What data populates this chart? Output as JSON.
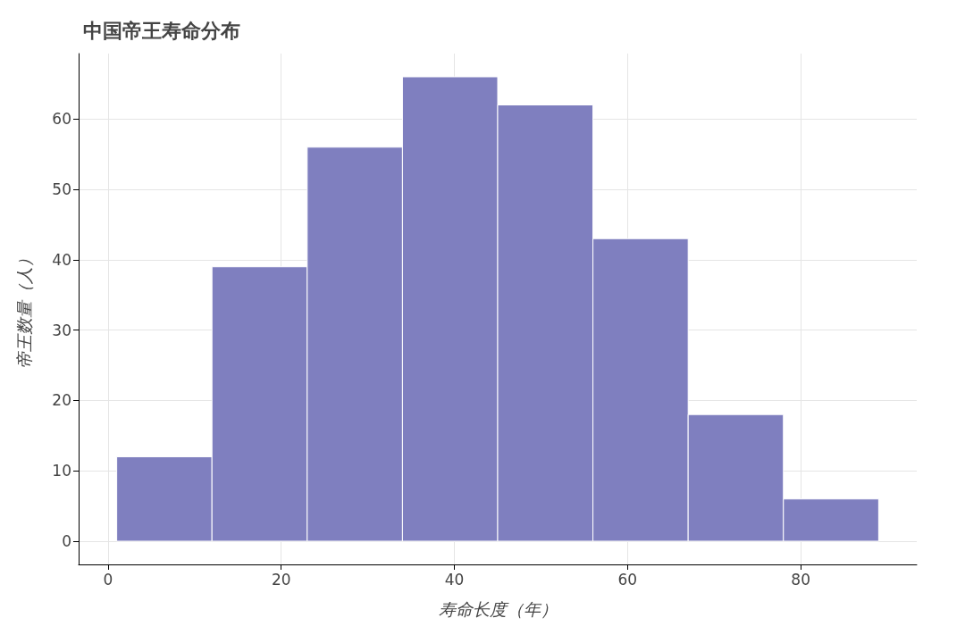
{
  "chart_data": {
    "type": "histogram",
    "title": "中国帝王寿命分布",
    "xlabel": "寿命长度（年）",
    "ylabel": "帝王数量（人）",
    "bins": [
      1,
      12,
      23,
      34,
      45,
      56,
      67,
      78,
      89
    ],
    "values": [
      12,
      39,
      56,
      66,
      62,
      43,
      18,
      6
    ],
    "color": "#7f7fbf",
    "xlim": [
      -3.4,
      93.4
    ],
    "xticks": [
      0,
      20,
      40,
      60,
      80
    ],
    "ylim": [
      -3.3,
      69.3
    ],
    "yticks": [
      0,
      10,
      20,
      30,
      40,
      50,
      60
    ],
    "grid": true
  }
}
